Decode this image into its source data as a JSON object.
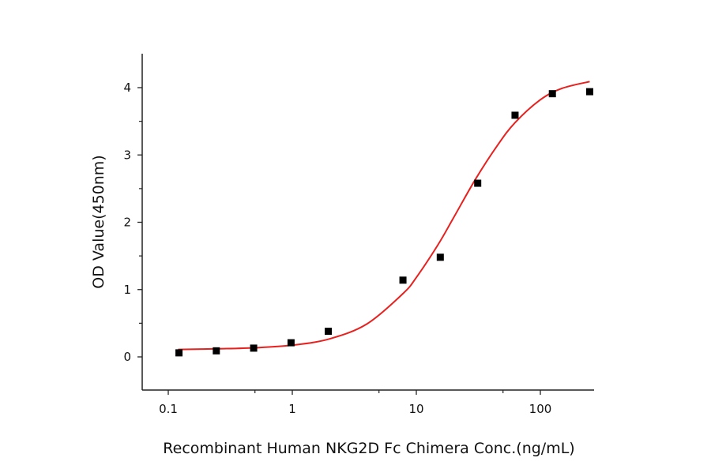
{
  "chart_data": {
    "type": "scatter",
    "title": "",
    "xlabel": "Recombinant Human NKG2D Fc Chimera Conc.(ng/mL)",
    "ylabel": "OD Value(450nm)",
    "xscale": "log",
    "xlim": [
      0.062,
      267
    ],
    "ylim": [
      -0.49,
      4.5
    ],
    "x_ticks": [
      0.1,
      1,
      10,
      100
    ],
    "x_tick_labels": [
      "0.1",
      "1",
      "10",
      "100"
    ],
    "x_minor_ticks": [
      0.5,
      5,
      50
    ],
    "y_ticks": [
      0,
      1,
      2,
      3,
      4
    ],
    "y_tick_labels": [
      "0",
      "1",
      "2",
      "3",
      "4"
    ],
    "y_minor_ticks": [
      0.5,
      1.5,
      2.5,
      3.5
    ],
    "grid": false,
    "legend": "none",
    "colors": {
      "points": "#000000",
      "fit": "#e8201e",
      "axis": "#222222"
    },
    "points": {
      "x": [
        0.122,
        0.244,
        0.488,
        0.977,
        1.95,
        7.8,
        15.6,
        31.25,
        62.5,
        125,
        250
      ],
      "y": [
        0.06,
        0.09,
        0.13,
        0.21,
        0.38,
        1.14,
        1.48,
        2.58,
        3.59,
        3.91,
        3.94
      ]
    },
    "fit_curve": {
      "type": "line",
      "x": [
        0.12,
        0.25,
        0.5,
        1,
        2,
        4,
        7.8,
        10,
        15,
        20,
        30,
        45,
        62.5,
        100,
        150,
        250
      ],
      "y": [
        0.11,
        0.12,
        0.135,
        0.174,
        0.268,
        0.49,
        0.94,
        1.18,
        1.67,
        2.07,
        2.64,
        3.14,
        3.48,
        3.82,
        3.99,
        4.09
      ]
    }
  }
}
